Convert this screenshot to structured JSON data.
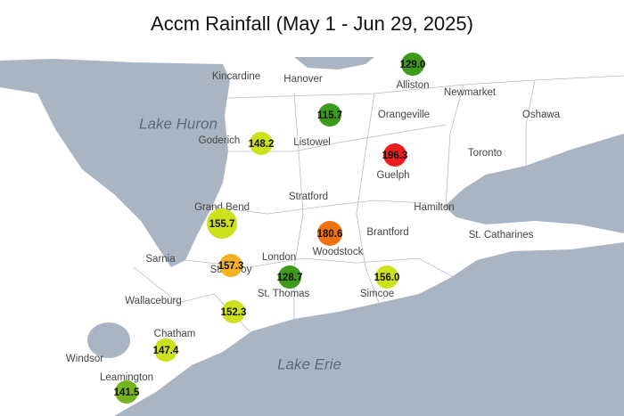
{
  "title": "Accm Rainfall (May 1 - Jun 29, 2025)",
  "lakes": [
    "Lake Huron",
    "Lake Erie"
  ],
  "places": [
    "Kincardine",
    "Hanover",
    "Alliston",
    "Newmarket",
    "Orangeville",
    "Oshawa",
    "Goderich",
    "Listowel",
    "Toronto",
    "Guelph",
    "Stratford",
    "Grand Bend",
    "Hamilton",
    "Brantford",
    "St. Catharines",
    "Woodstock",
    "Sarnia",
    "London",
    "Strathroy",
    "St. Thomas",
    "Simcoe",
    "Wallaceburg",
    "Chatham",
    "Windsor",
    "Leamington"
  ],
  "stations": {
    "values": [
      129.0,
      115.7,
      148.2,
      196.3,
      155.7,
      180.6,
      157.3,
      128.7,
      156.0,
      152.3,
      147.4,
      141.5
    ],
    "value_labels": [
      "129.0",
      "115.7",
      "148.2",
      "196.3",
      "155.7",
      "180.6",
      "157.3",
      "128.7",
      "156.0",
      "152.3",
      "147.4",
      "141.5"
    ],
    "colors": [
      "#3c9a1c",
      "#3c9a1c",
      "#cde21c",
      "#ee1c1c",
      "#cde21c",
      "#ef7212",
      "#f2b425",
      "#3c9a1c",
      "#cde21c",
      "#cde21c",
      "#cde21c",
      "#74b41e"
    ]
  }
}
